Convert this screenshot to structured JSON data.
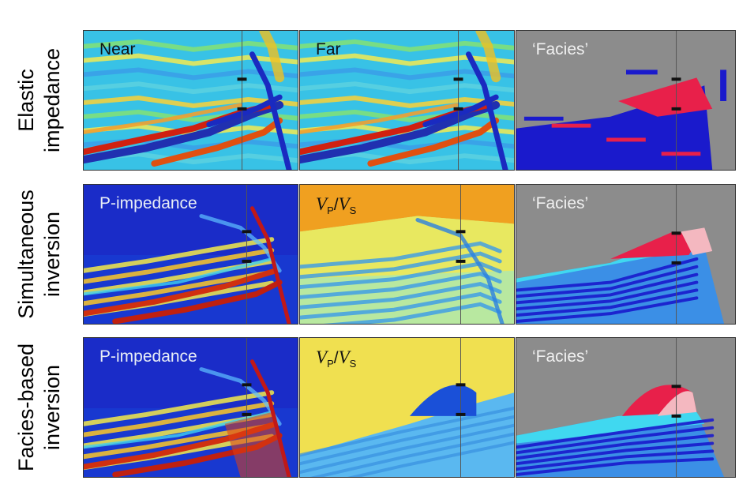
{
  "rows": [
    {
      "label_line1": "Elastic",
      "label_line2": "impedance",
      "panels": [
        {
          "label": "Near",
          "kind": "seismic"
        },
        {
          "label": "Far",
          "kind": "seismic"
        },
        {
          "label": "‘Facies’",
          "kind": "facies1"
        }
      ]
    },
    {
      "label_line1": "Simultaneous",
      "label_line2": "inversion",
      "panels": [
        {
          "label": "P-impedance",
          "kind": "pimp"
        },
        {
          "label_v1": "V",
          "label_sub1": "P",
          "label_slash": "/",
          "label_v2": "V",
          "label_sub2": "S",
          "kind": "vpvs"
        },
        {
          "label": "‘Facies’",
          "kind": "facies2"
        }
      ]
    },
    {
      "label_line1": "Facies-based",
      "label_line2": "inversion",
      "panels": [
        {
          "label": "P-impedance",
          "kind": "pimp2"
        },
        {
          "label_v1": "V",
          "label_sub1": "P",
          "label_slash": "/",
          "label_v2": "V",
          "label_sub2": "S",
          "kind": "vpvs2"
        },
        {
          "label": "‘Facies’",
          "kind": "facies3"
        }
      ]
    }
  ],
  "colors": {
    "gray_bg": "#8c8c8c",
    "dark_blue": "#1a1acc",
    "mid_blue": "#3b8fe6",
    "cyan": "#40d8f0",
    "red": "#e8204a",
    "pink": "#f4b8c0"
  }
}
